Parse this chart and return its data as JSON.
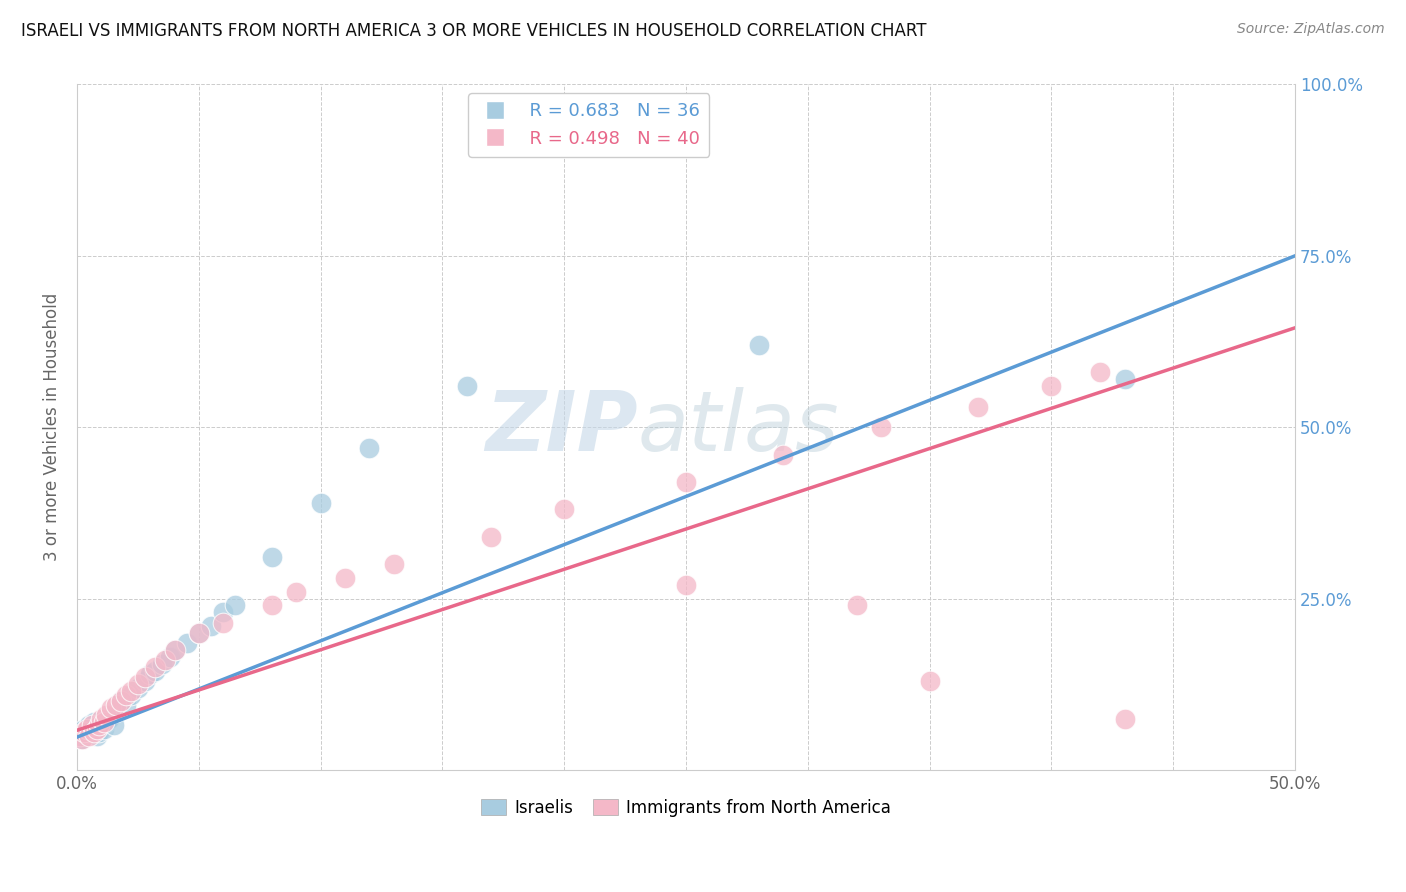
{
  "title": "ISRAELI VS IMMIGRANTS FROM NORTH AMERICA 3 OR MORE VEHICLES IN HOUSEHOLD CORRELATION CHART",
  "source": "Source: ZipAtlas.com",
  "ylabel": "3 or more Vehicles in Household",
  "xlabel": "",
  "xlim": [
    0.0,
    0.5
  ],
  "ylim": [
    0.0,
    1.0
  ],
  "xticks": [
    0.0,
    0.05,
    0.1,
    0.15,
    0.2,
    0.25,
    0.3,
    0.35,
    0.4,
    0.45,
    0.5
  ],
  "yticks": [
    0.0,
    0.25,
    0.5,
    0.75,
    1.0
  ],
  "xticklabels": [
    "0.0%",
    "",
    "",
    "",
    "",
    "",
    "",
    "",
    "",
    "",
    "50.0%"
  ],
  "yticklabels_left": [
    "",
    "",
    "",
    "",
    ""
  ],
  "yticklabels_right": [
    "",
    "25.0%",
    "50.0%",
    "75.0%",
    "100.0%"
  ],
  "legend_R_blue": "R = 0.683",
  "legend_N_blue": "N = 36",
  "legend_R_pink": "R = 0.498",
  "legend_N_pink": "N = 40",
  "blue_color": "#a8cce0",
  "pink_color": "#f4b8c8",
  "blue_line_color": "#5b9bd5",
  "pink_line_color": "#e8688a",
  "watermark_zip": "ZIP",
  "watermark_atlas": "atlas",
  "israelis_x": [
    0.001,
    0.002,
    0.003,
    0.004,
    0.005,
    0.006,
    0.007,
    0.008,
    0.009,
    0.01,
    0.011,
    0.012,
    0.013,
    0.015,
    0.016,
    0.018,
    0.02,
    0.022,
    0.025,
    0.028,
    0.03,
    0.032,
    0.035,
    0.038,
    0.04,
    0.045,
    0.05,
    0.055,
    0.06,
    0.065,
    0.08,
    0.1,
    0.12,
    0.16,
    0.28,
    0.43
  ],
  "israelis_y": [
    0.05,
    0.045,
    0.06,
    0.055,
    0.065,
    0.06,
    0.07,
    0.05,
    0.055,
    0.065,
    0.06,
    0.07,
    0.075,
    0.065,
    0.085,
    0.1,
    0.095,
    0.11,
    0.12,
    0.13,
    0.14,
    0.145,
    0.155,
    0.165,
    0.175,
    0.185,
    0.2,
    0.21,
    0.23,
    0.24,
    0.31,
    0.39,
    0.47,
    0.56,
    0.62,
    0.57
  ],
  "immigrants_x": [
    0.001,
    0.002,
    0.003,
    0.004,
    0.005,
    0.006,
    0.007,
    0.008,
    0.009,
    0.01,
    0.011,
    0.012,
    0.014,
    0.016,
    0.018,
    0.02,
    0.022,
    0.025,
    0.028,
    0.032,
    0.036,
    0.04,
    0.05,
    0.06,
    0.08,
    0.09,
    0.11,
    0.13,
    0.17,
    0.2,
    0.25,
    0.29,
    0.33,
    0.37,
    0.4,
    0.42,
    0.25,
    0.32,
    0.35,
    0.43
  ],
  "immigrants_y": [
    0.05,
    0.045,
    0.055,
    0.06,
    0.05,
    0.065,
    0.055,
    0.06,
    0.065,
    0.075,
    0.07,
    0.08,
    0.09,
    0.095,
    0.1,
    0.11,
    0.115,
    0.125,
    0.135,
    0.15,
    0.16,
    0.175,
    0.2,
    0.215,
    0.24,
    0.26,
    0.28,
    0.3,
    0.34,
    0.38,
    0.42,
    0.46,
    0.5,
    0.53,
    0.56,
    0.58,
    0.27,
    0.24,
    0.13,
    0.075
  ],
  "background_color": "#ffffff",
  "grid_color": "#cccccc"
}
